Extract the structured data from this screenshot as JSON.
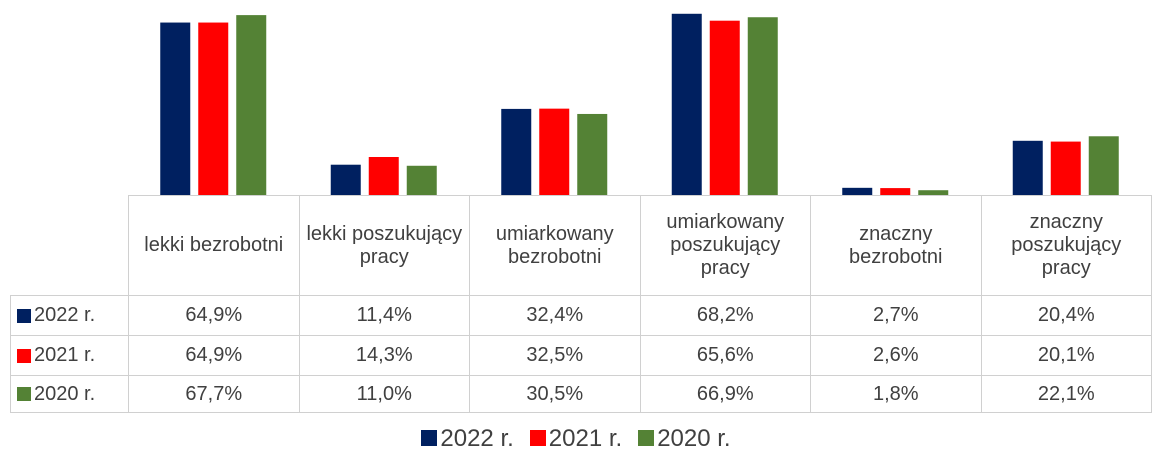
{
  "chart_data": {
    "type": "bar",
    "categories": [
      "lekki bezrobotni",
      "lekki poszukujący pracy",
      "umiarkowany bezrobotni",
      "umiarkowany poszukujący pracy",
      "znaczny bezrobotni",
      "znaczny poszukujący pracy"
    ],
    "series": [
      {
        "name": "2022 r.",
        "color": "#002060",
        "values": [
          64.9,
          11.4,
          32.4,
          68.2,
          2.7,
          20.4
        ],
        "value_labels": [
          "64,9%",
          "11,4%",
          "32,4%",
          "68,2%",
          "2,7%",
          "20,4%"
        ]
      },
      {
        "name": "2021 r.",
        "color": "#ff0000",
        "values": [
          64.9,
          14.3,
          32.5,
          65.6,
          2.6,
          20.1
        ],
        "value_labels": [
          "64,9%",
          "14,3%",
          "32,5%",
          "65,6%",
          "2,6%",
          "20,1%"
        ]
      },
      {
        "name": "2020 r.",
        "color": "#548235",
        "values": [
          67.7,
          11.0,
          30.5,
          66.9,
          1.8,
          22.1
        ],
        "value_labels": [
          "67,7%",
          "11,0%",
          "30,5%",
          "66,9%",
          "1,8%",
          "22,1%"
        ]
      }
    ],
    "ylim": [
      0,
      70
    ],
    "legend": "bottom"
  }
}
